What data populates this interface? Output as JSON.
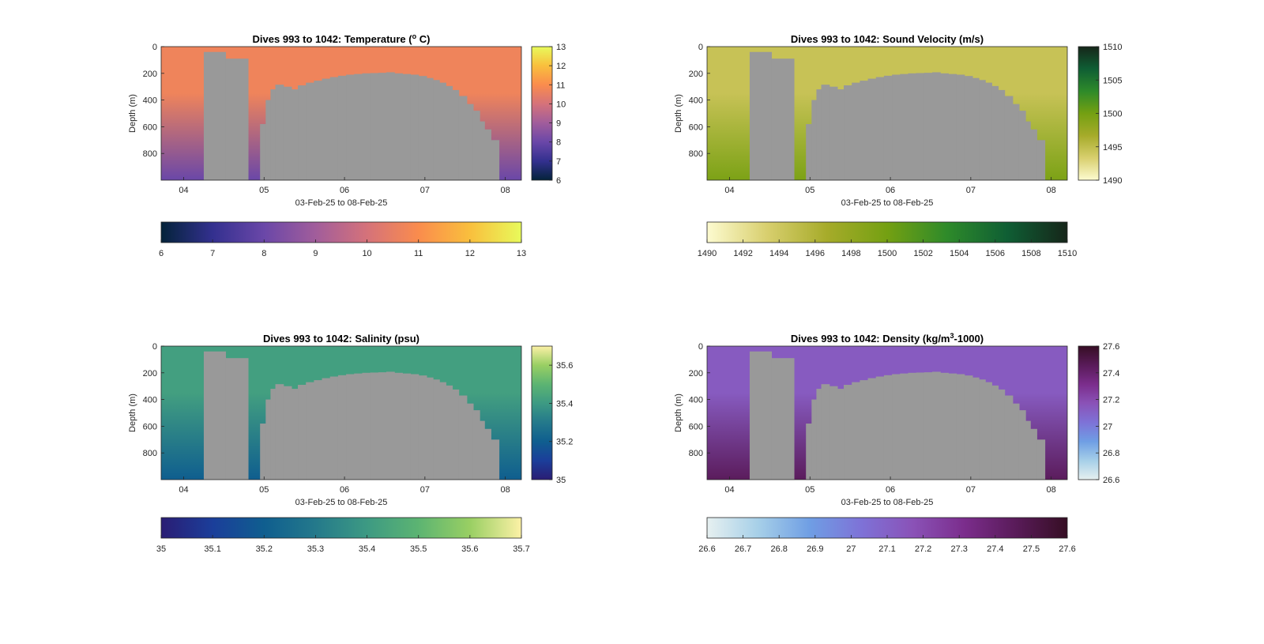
{
  "chart_data": [
    {
      "type": "heatmap",
      "title_pre": "Dives 993 to 1042: Temperature (",
      "title_sup": "o",
      "title_post": " C)",
      "xlabel": "03-Feb-25 to 08-Feb-25",
      "ylabel": "Depth (m)",
      "x_ticks": [
        "04",
        "05",
        "06",
        "07",
        "08"
      ],
      "x_range": [
        "03-Feb-25",
        "08-Feb-25"
      ],
      "y_ticks": [
        0,
        200,
        400,
        600,
        800
      ],
      "ylim": [
        0,
        1000
      ],
      "y_reversed": true,
      "colorscale": {
        "name": "thermal",
        "colors": [
          "#04233a",
          "#33308f",
          "#6a47a8",
          "#a15d9b",
          "#d5727a",
          "#fa8c4d",
          "#f9bf3d",
          "#e8fa5b"
        ]
      },
      "clim": [
        6,
        13
      ],
      "right_colorbar_ticks": [
        6,
        7,
        8,
        9,
        10,
        11,
        12,
        13
      ],
      "bottom_colorbar_ticks": [
        6,
        7,
        8,
        9,
        10,
        11,
        12,
        13
      ],
      "surface_value": 10.7,
      "deep_value": 8.0,
      "missing_color": "#999999"
    },
    {
      "type": "heatmap",
      "title_pre": "Dives 993 to 1042: Sound Velocity (m/s)",
      "title_sup": "",
      "title_post": "",
      "xlabel": "03-Feb-25 to 08-Feb-25",
      "ylabel": "Depth (m)",
      "x_ticks": [
        "04",
        "05",
        "06",
        "07",
        "08"
      ],
      "x_range": [
        "03-Feb-25",
        "08-Feb-25"
      ],
      "y_ticks": [
        0,
        200,
        400,
        600,
        800
      ],
      "ylim": [
        0,
        1000
      ],
      "y_reversed": true,
      "colorscale": {
        "name": "speed",
        "colors": [
          "#fdfbd0",
          "#d8cf6e",
          "#a6ab2a",
          "#74a012",
          "#2e8a2a",
          "#0f5e34",
          "#16261a"
        ]
      },
      "clim": [
        1490,
        1510
      ],
      "right_colorbar_ticks": [
        1490,
        1495,
        1500,
        1505,
        1510
      ],
      "bottom_colorbar_ticks": [
        1490,
        1492,
        1494,
        1496,
        1498,
        1500,
        1502,
        1504,
        1506,
        1508,
        1510
      ],
      "surface_value": 1494.5,
      "deep_value": 1499.5,
      "missing_color": "#999999"
    },
    {
      "type": "heatmap",
      "title_pre": "Dives 993 to 1042: Salinity (psu)",
      "title_sup": "",
      "title_post": "",
      "xlabel": "03-Feb-25 to 08-Feb-25",
      "ylabel": "Depth (m)",
      "x_ticks": [
        "04",
        "05",
        "06",
        "07",
        "08"
      ],
      "x_range": [
        "03-Feb-25",
        "08-Feb-25"
      ],
      "y_ticks": [
        0,
        200,
        400,
        600,
        800
      ],
      "ylim": [
        0,
        1000
      ],
      "y_reversed": true,
      "colorscale": {
        "name": "haline",
        "colors": [
          "#2a1d74",
          "#1b3e9a",
          "#0f5e8f",
          "#24798b",
          "#3d9a83",
          "#5cb472",
          "#99cf63",
          "#fcf1a6"
        ]
      },
      "clim": [
        35.0,
        35.7
      ],
      "right_colorbar_ticks": [
        35,
        35.2,
        35.4,
        35.6
      ],
      "bottom_colorbar_ticks": [
        35,
        35.1,
        35.2,
        35.3,
        35.4,
        35.5,
        35.6,
        35.7
      ],
      "surface_value": 35.42,
      "deep_value": 35.2,
      "missing_color": "#999999"
    },
    {
      "type": "heatmap",
      "title_pre": "Dives 993 to 1042: Density (kg/m",
      "title_sup": "3",
      "title_post": "-1000)",
      "xlabel": "03-Feb-25 to 08-Feb-25",
      "ylabel": "Depth (m)",
      "x_ticks": [
        "04",
        "05",
        "06",
        "07",
        "08"
      ],
      "x_range": [
        "03-Feb-25",
        "08-Feb-25"
      ],
      "y_ticks": [
        0,
        200,
        400,
        600,
        800
      ],
      "ylim": [
        0,
        1000
      ],
      "y_reversed": true,
      "colorscale": {
        "name": "dense",
        "colors": [
          "#e6f0f0",
          "#a6cfe8",
          "#6f9ee4",
          "#7e72d7",
          "#8a52b7",
          "#7b2d8c",
          "#591b59",
          "#360e24"
        ]
      },
      "clim": [
        26.6,
        27.6
      ],
      "right_colorbar_ticks": [
        26.6,
        26.8,
        27,
        27.2,
        27.4,
        27.6
      ],
      "bottom_colorbar_ticks": [
        26.6,
        26.7,
        26.8,
        26.9,
        27,
        27.1,
        27.2,
        27.3,
        27.4,
        27.5,
        27.6
      ],
      "surface_value": 27.13,
      "deep_value": 27.45,
      "missing_color": "#999999"
    }
  ]
}
